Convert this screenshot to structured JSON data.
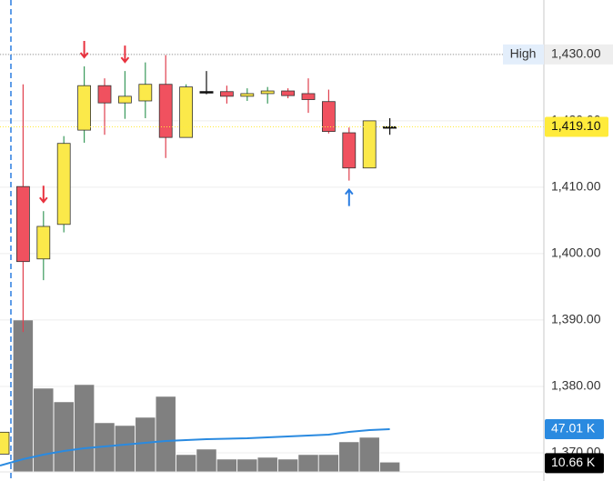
{
  "chart_data": {
    "type": "candlestick",
    "open": [
      1369.8,
      1410.1,
      1399.2,
      1404.4,
      1418.6,
      1425.3,
      1422.7,
      1423.0,
      1425.5,
      1417.5,
      1424.4,
      1424.4,
      1423.7,
      1424.1,
      1424.5,
      1424.1,
      1422.9,
      1418.2,
      1412.9,
      1419.1
    ],
    "high": [
      1373.1,
      1425.5,
      1406.4,
      1417.7,
      1428.2,
      1426.4,
      1427.5,
      1428.8,
      1429.9,
      1425.5,
      1427.5,
      1425.3,
      1424.9,
      1425.1,
      1424.9,
      1426.4,
      1424.7,
      1419.0,
      1420.0,
      1420.4
    ],
    "low": [
      1369.8,
      1388.2,
      1396.0,
      1403.2,
      1416.7,
      1417.9,
      1420.3,
      1420.4,
      1414.4,
      1417.5,
      1424.0,
      1422.6,
      1423.0,
      1422.6,
      1423.4,
      1421.2,
      1418.1,
      1411.0,
      1412.9,
      1417.9
    ],
    "close": [
      1373.1,
      1398.8,
      1404.1,
      1416.6,
      1425.3,
      1422.7,
      1423.7,
      1425.5,
      1417.5,
      1425.1,
      1424.4,
      1423.7,
      1424.1,
      1424.5,
      1423.8,
      1423.2,
      1418.4,
      1412.9,
      1420.0,
      1419.1
    ],
    "up_color": "#fbe94a",
    "down_color": "#f0515f",
    "flat_color": "#111111",
    "up_wick_color": "#3a9a5c",
    "down_wick_color": "#e0404e",
    "markers": [
      null,
      null,
      "down",
      null,
      "down",
      null,
      "down",
      null,
      null,
      null,
      null,
      null,
      null,
      null,
      null,
      null,
      null,
      "up",
      null,
      null
    ],
    "down_marker_color": "#e8323f",
    "up_marker_color": "#2a7de1",
    "ylim": [
      1365.75,
      1438.2
    ],
    "yticks": [
      {
        "value": 1430,
        "label": "1,430.00"
      },
      {
        "value": 1420,
        "label": "1,420.00"
      },
      {
        "value": 1410,
        "label": "1,410.00"
      },
      {
        "value": 1400,
        "label": "1,400.00"
      },
      {
        "value": 1390,
        "label": "1,390.00"
      },
      {
        "value": 1380,
        "label": "1,380.00"
      },
      {
        "value": 1370,
        "label": "1,370.00"
      }
    ],
    "grid": true,
    "high_line": {
      "label": "High",
      "value": 1430
    },
    "last_price": {
      "value": 1419.1,
      "label": "1,419.10",
      "color": "#ffeb3b"
    },
    "y2lim": [
      -10,
      519
    ],
    "volume": {
      "axis": "y2",
      "color": "#808080",
      "values": [
        null,
        167,
        92,
        77,
        96,
        54,
        51,
        60,
        83,
        19,
        25,
        14,
        14,
        16,
        14,
        19,
        19,
        33,
        38,
        10.66
      ],
      "value_labels": [
        null,
        null,
        null,
        null,
        null,
        null,
        null,
        null,
        null,
        null,
        null,
        null,
        null,
        null,
        null,
        null,
        null,
        null,
        null,
        "10.66 K"
      ]
    },
    "volume_ma": {
      "axis": "y2",
      "color": "#2a8ae0",
      "values": [
        7,
        14,
        19,
        23,
        26,
        28,
        30,
        32,
        34,
        35,
        36,
        36.5,
        37,
        38,
        39,
        40,
        41,
        44,
        46,
        47.01
      ],
      "value_labels": [
        null,
        null,
        null,
        null,
        null,
        null,
        null,
        null,
        null,
        null,
        null,
        null,
        null,
        null,
        null,
        null,
        null,
        null,
        null,
        "47.01 K"
      ]
    }
  }
}
